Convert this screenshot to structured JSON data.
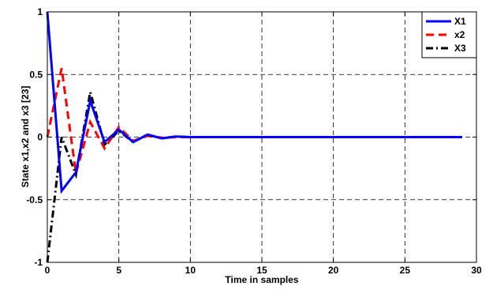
{
  "chart_data": {
    "type": "line",
    "title": "",
    "xlabel": "Time in samples",
    "ylabel": "State x1,x2 and x3 [23]",
    "xlim": [
      0,
      30
    ],
    "ylim": [
      -1,
      1
    ],
    "xticks": [
      0,
      5,
      10,
      15,
      20,
      25,
      30
    ],
    "yticks": [
      -1,
      -0.5,
      0,
      0.5,
      1
    ],
    "xtick_labels": [
      "0",
      "5",
      "10",
      "15",
      "20",
      "25",
      "30"
    ],
    "ytick_labels": [
      "-1",
      "-0.5",
      "0",
      "0.5",
      "1"
    ],
    "grid": true,
    "legend_position": "top-right",
    "x": [
      0,
      1,
      2,
      3,
      4,
      5,
      6,
      7,
      8,
      9,
      10,
      11,
      12,
      13,
      14,
      15,
      16,
      17,
      18,
      19,
      20,
      21,
      22,
      23,
      24,
      25,
      26,
      27,
      28,
      29
    ],
    "series": [
      {
        "name": "X1",
        "color": "#0000ff",
        "dash": "solid",
        "values": [
          1,
          -0.43,
          -0.28,
          0.29,
          -0.04,
          0.06,
          -0.04,
          0.02,
          -0.01,
          0.005,
          0,
          0,
          0,
          0,
          0,
          0,
          0,
          0,
          0,
          0,
          0,
          0,
          0,
          0,
          0,
          0,
          0,
          0,
          0,
          0
        ]
      },
      {
        "name": "x2",
        "color": "#ff0000",
        "dash": "dashed",
        "values": [
          0,
          0.55,
          -0.29,
          0.12,
          -0.09,
          0.08,
          -0.03,
          0.01,
          -0.005,
          0,
          0,
          0,
          0,
          0,
          0,
          0,
          0,
          0,
          0,
          0,
          0,
          0,
          0,
          0,
          0,
          0,
          0,
          0,
          0,
          0
        ]
      },
      {
        "name": "X3",
        "color": "#000000",
        "dash": "dashdot",
        "values": [
          -1,
          0,
          -0.3,
          0.36,
          -0.06,
          0.05,
          -0.04,
          0.02,
          -0.01,
          0.005,
          0,
          0,
          0,
          0,
          0,
          0,
          0,
          0,
          0,
          0,
          0,
          0,
          0,
          0,
          0,
          0,
          0,
          0,
          0,
          0
        ]
      }
    ]
  }
}
